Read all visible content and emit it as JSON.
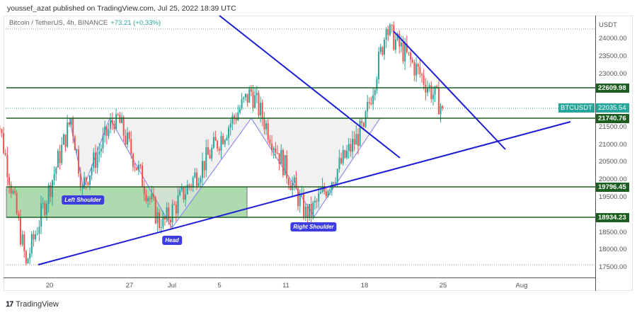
{
  "header": {
    "publish_text": "youssef_azat published on TradingView.com, Jul 25, 2022 18:39 UTC"
  },
  "legend": {
    "symbol_text": "Bitcoin / TetherUS, 4h, BINANCE",
    "change_text": "+73.21 (+0.33%)"
  },
  "price_axis": {
    "unit": "USDT",
    "ticks": [
      "24000.00",
      "23500.00",
      "23000.00",
      "21500.00",
      "21000.00",
      "20500.00",
      "20000.00",
      "19500.00",
      "18500.00",
      "18000.00",
      "17500.00"
    ],
    "levels": [
      {
        "label": "22609.98",
        "color": "#1b5e20"
      },
      {
        "label": "21740.76",
        "color": "#1b5e20"
      },
      {
        "label": "19796.45",
        "color": "#1b5e20"
      },
      {
        "label": "18934.23",
        "color": "#1b5e20"
      }
    ],
    "current": {
      "symbol": "BTCUSDT",
      "price": "22035.54",
      "color": "#26a69a"
    }
  },
  "time_axis": {
    "ticks": [
      "20",
      "27",
      "Jul",
      "5",
      "11",
      "18",
      "25",
      "Aug"
    ]
  },
  "annotations": {
    "left_shoulder": "Left Shoulder",
    "head": "Head",
    "right_shoulder": "Right Shoulder"
  },
  "footer": {
    "logo_mark": "17",
    "brand": "TradingView"
  },
  "colors": {
    "up": "#26a69a",
    "down": "#ef5350",
    "trendline": "#1c1cd8",
    "level_line": "#1b5e20",
    "zone_fill": "#a5d6a7"
  },
  "chart_data": {
    "type": "candlestick",
    "title": "Bitcoin / TetherUS, 4h, BINANCE",
    "interval": "4h",
    "exchange": "BINANCE",
    "last_price": 22035.54,
    "change": 73.21,
    "change_pct": 0.33,
    "ylabel": "USDT",
    "ylim": [
      17200,
      24400
    ],
    "x_ticks": [
      "20",
      "27",
      "Jul",
      "5",
      "11",
      "18",
      "25",
      "Aug"
    ],
    "approx_swing_points": [
      {
        "date": "Jun 15",
        "price": 22600
      },
      {
        "date": "Jun 18",
        "price": 17620
      },
      {
        "date": "Jun 22",
        "price": 21740
      },
      {
        "date": "Jun 23",
        "price": 19800
      },
      {
        "date": "Jun 26",
        "price": 21860
      },
      {
        "date": "Jun 30",
        "price": 18650
      },
      {
        "date": "Jul 8",
        "price": 22500
      },
      {
        "date": "Jul 13",
        "price": 18910
      },
      {
        "date": "Jul 18",
        "price": 21500
      },
      {
        "date": "Jul 20",
        "price": 24280
      },
      {
        "date": "Jul 23",
        "price": 23000
      },
      {
        "date": "Jul 25",
        "price": 22035.54
      }
    ],
    "horizontal_levels": [
      22609.98,
      21740.76,
      19796.45,
      18934.23
    ],
    "demand_zone": {
      "from": 18934.23,
      "to": 19796.45,
      "x_range": [
        "Jun 15",
        "Jul 7"
      ]
    },
    "pattern": "Inverse Head and Shoulders",
    "pattern_labels": [
      "Left Shoulder",
      "Head",
      "Right Shoulder"
    ],
    "trendlines": [
      {
        "name": "ascending support",
        "from": {
          "date": "Jun 18",
          "price": 17620
        },
        "to": {
          "date": "Jul 31",
          "price": 21630
        }
      },
      {
        "name": "descending (left)",
        "from": {
          "date": "Jul 3",
          "price": 24800
        },
        "to": {
          "date": "Jul 21",
          "price": 20760
        }
      },
      {
        "name": "descending (right)",
        "from": {
          "date": "Jul 20",
          "price": 24200
        },
        "to": {
          "date": "Jul 30",
          "price": 20850
        }
      }
    ],
    "grid": false,
    "legend_position": "top-left"
  }
}
